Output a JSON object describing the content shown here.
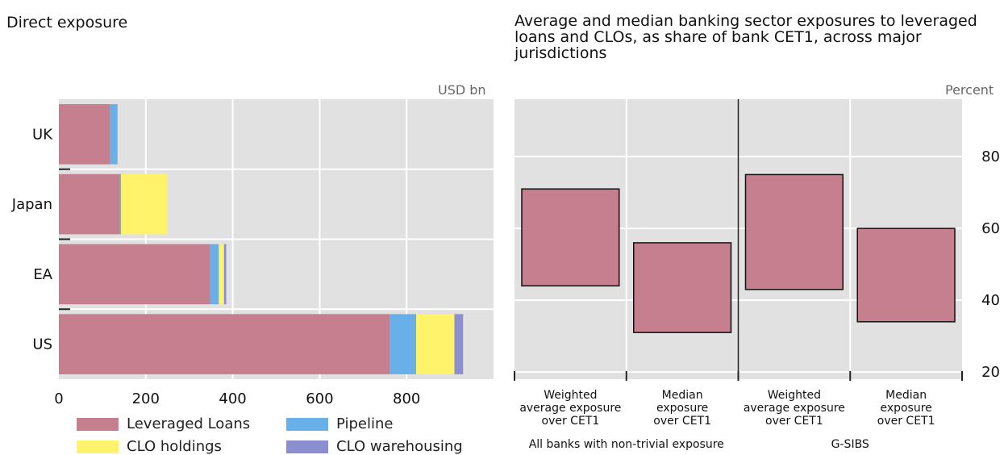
{
  "left_panel": {
    "title": "Direct exposure",
    "unit": "USD bn"
  },
  "right_panel": {
    "title": "Average and median banking sector exposures to leveraged loans and CLOs, as share of bank CET1, across major jurisdictions",
    "unit": "Percent"
  },
  "chart_data": [
    {
      "type": "bar",
      "orientation": "horizontal",
      "stacked": true,
      "title": "Direct exposure",
      "unit": "USD bn",
      "categories": [
        "UK",
        "Japan",
        "EA",
        "US"
      ],
      "series": [
        {
          "name": "Leveraged Loans",
          "color": "#c57f8e",
          "values": [
            118,
            140,
            348,
            762
          ]
        },
        {
          "name": "Pipeline",
          "color": "#6ab0e8",
          "values": [
            17,
            3,
            20,
            60
          ]
        },
        {
          "name": "CLO holdings",
          "color": "#fef36a",
          "values": [
            0,
            107,
            12,
            88
          ]
        },
        {
          "name": "CLO warehousing",
          "color": "#8b8fcf",
          "values": [
            0,
            0,
            5,
            20
          ]
        }
      ],
      "xlim": [
        0,
        1000
      ],
      "xticks": [
        0,
        200,
        400,
        600,
        800
      ],
      "grid": true,
      "legend_position": "bottom"
    },
    {
      "type": "range-box",
      "title": "Average and median banking sector exposures to leveraged loans and CLOs, as share of bank CET1, across major jurisdictions",
      "unit": "Percent",
      "categories": [
        "Weighted average exposure over CET1",
        "Median exposure over CET1",
        "Weighted average exposure over CET1",
        "Median exposure over CET1"
      ],
      "groups": [
        {
          "label": "All banks with non-trivial exposure",
          "categories": [
            0,
            1
          ]
        },
        {
          "label": "G-SIBS",
          "categories": [
            2,
            3
          ]
        }
      ],
      "ranges": [
        [
          44,
          71
        ],
        [
          31,
          56
        ],
        [
          43,
          75
        ],
        [
          34,
          60
        ]
      ],
      "color": "#c57f8e",
      "ylim": [
        18,
        96
      ],
      "yticks": [
        20,
        40,
        60,
        80
      ],
      "grid": true
    }
  ]
}
